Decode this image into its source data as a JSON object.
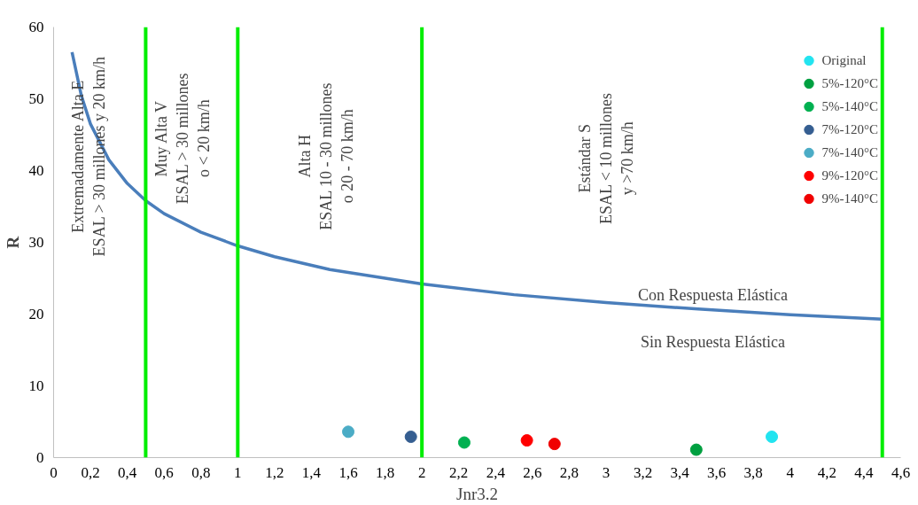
{
  "chart_data": {
    "type": "scatter",
    "xlabel": "Jnr3.2",
    "ylabel": "R",
    "xlim": [
      0,
      4.6
    ],
    "ylim": [
      0,
      60
    ],
    "xticks": [
      0,
      {
        "value": 0.2,
        "label": "0,2"
      },
      {
        "value": 0.4,
        "label": "0,4"
      },
      {
        "value": 0.6,
        "label": "0,6"
      },
      {
        "value": 0.8,
        "label": "0,8"
      },
      1,
      {
        "value": 1.2,
        "label": "1,2"
      },
      {
        "value": 1.4,
        "label": "1,4"
      },
      {
        "value": 1.6,
        "label": "1,6"
      },
      {
        "value": 1.8,
        "label": "1,8"
      },
      2,
      {
        "value": 2.2,
        "label": "2,2"
      },
      {
        "value": 2.4,
        "label": "2,4"
      },
      {
        "value": 2.6,
        "label": "2,6"
      },
      {
        "value": 2.8,
        "label": "2,8"
      },
      3,
      {
        "value": 3.2,
        "label": "3,2"
      },
      {
        "value": 3.4,
        "label": "3,4"
      },
      {
        "value": 3.6,
        "label": "3,6"
      },
      {
        "value": 3.8,
        "label": "3,8"
      },
      4,
      {
        "value": 4.2,
        "label": "4,2"
      },
      {
        "value": 4.4,
        "label": "4,4"
      },
      {
        "value": 4.6,
        "label": "4,6"
      }
    ],
    "yticks": [
      0,
      10,
      20,
      30,
      40,
      50,
      60
    ],
    "grid": false,
    "legend": "top right",
    "series": [
      {
        "type": "line",
        "color": "#4a7ebb",
        "x": [
          0.1,
          0.15,
          0.2,
          0.3,
          0.4,
          0.5,
          0.6,
          0.8,
          1,
          1.2,
          1.5,
          2,
          2.5,
          3,
          3.5,
          4,
          4.5
        ],
        "values": [
          56.5,
          50.5,
          46.5,
          41.5,
          38.2,
          35.8,
          34,
          31.4,
          29.5,
          28,
          26.2,
          24.2,
          22.7,
          21.6,
          20.7,
          19.9,
          19.3
        ]
      },
      {
        "name": "Original",
        "color": "#22e4f0",
        "x": [
          3.9
        ],
        "values": [
          2.9
        ]
      },
      {
        "name": "5%-120°C",
        "color": "#00a040",
        "x": [
          3.49
        ],
        "values": [
          1.1
        ]
      },
      {
        "name": "5%-140°C",
        "color": "#00b050",
        "x": [
          2.23
        ],
        "values": [
          2.1
        ]
      },
      {
        "name": "7%-120°C",
        "color": "#355e91",
        "x": [
          1.94
        ],
        "values": [
          2.9
        ]
      },
      {
        "name": "7%-140°C",
        "color": "#4bacc6",
        "x": [
          1.6
        ],
        "values": [
          3.6
        ]
      },
      {
        "name": "9%-120°C",
        "color": "#ff0000",
        "x": [
          2.57
        ],
        "values": [
          2.4
        ]
      },
      {
        "name": "9%-140°C",
        "color": "#f00000",
        "x": [
          2.72
        ],
        "values": [
          1.9
        ]
      }
    ],
    "ref_lines": [
      {
        "axis": "x",
        "value": 0.5,
        "color": "#00ee00"
      },
      {
        "axis": "x",
        "value": 1,
        "color": "#00ee00"
      },
      {
        "axis": "x",
        "value": 2,
        "color": "#00ee00"
      },
      {
        "axis": "x",
        "value": 4.5,
        "color": "#00ee00"
      }
    ],
    "annotations": [
      "Extremadamente Alta E\nESAL > 30 millones y 20 km/h",
      "Muy Alta V\nESAL > 30 millones\no < 20 km/h",
      "Alta H\nESAL 10 - 30 millones\no 20 - 70 km/h",
      "Estándar S\nESAL < 10 millones\ny >70 km/h",
      "Con Respuesta Elástica",
      "Sin Respuesta Elástica"
    ]
  }
}
